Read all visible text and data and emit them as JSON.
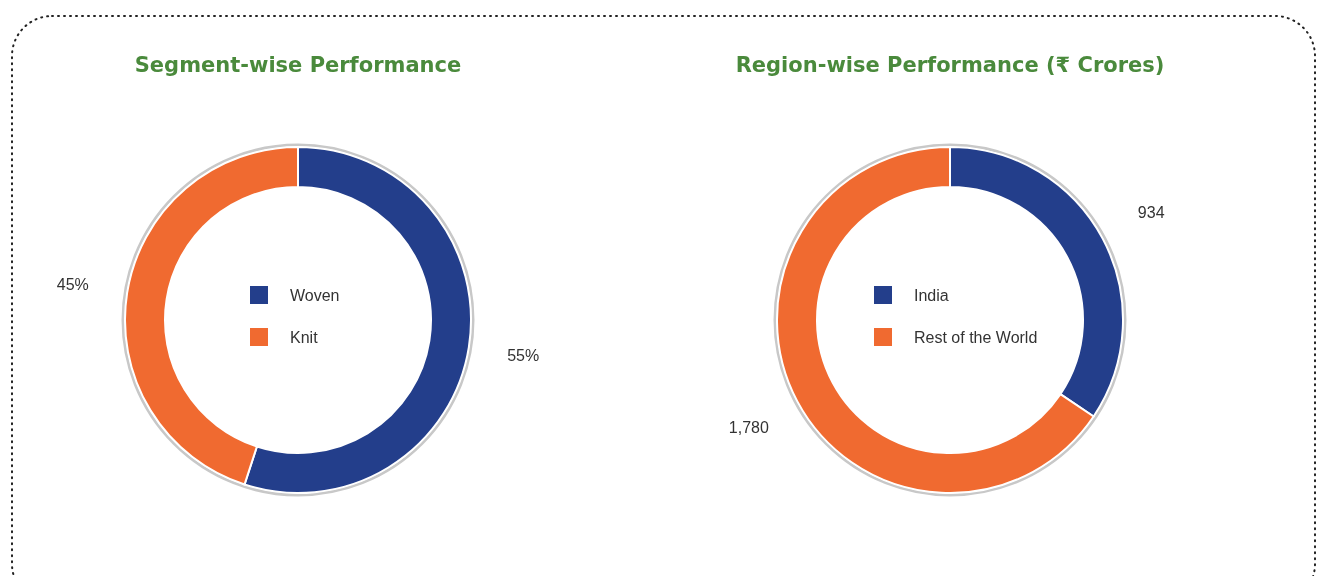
{
  "chart_data": [
    {
      "type": "donut",
      "title": "Segment-wise Performance",
      "categories": [
        "Woven",
        "Knit"
      ],
      "values": [
        55,
        45
      ],
      "colors": [
        "#233e8b",
        "#f06a30"
      ],
      "value_labels": [
        "55%",
        "45%"
      ],
      "legend": "center"
    },
    {
      "type": "donut",
      "title": "Region-wise Performance (₹ Crores)",
      "categories": [
        "India",
        "Rest of the World"
      ],
      "values": [
        934,
        1780
      ],
      "colors": [
        "#233e8b",
        "#f06a30"
      ],
      "value_labels": [
        "934",
        "1,780"
      ],
      "legend": "center"
    }
  ]
}
